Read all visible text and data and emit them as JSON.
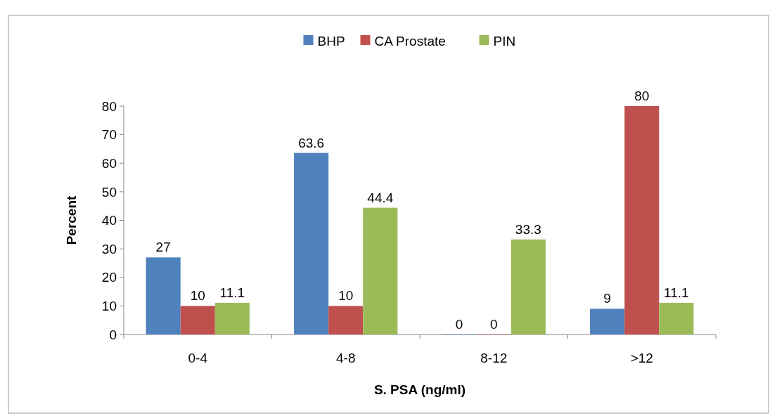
{
  "chart_data": {
    "type": "bar",
    "xlabel": "S. PSA (ng/ml)",
    "ylabel": "Percent",
    "categories": [
      "0-4",
      "4-8",
      "8-12",
      ">12"
    ],
    "series": [
      {
        "name": "BHP",
        "color": "#4f81bd",
        "values": [
          27,
          63.6,
          0,
          9
        ]
      },
      {
        "name": "CA Prostate",
        "color": "#c0504d",
        "values": [
          10,
          10,
          0,
          80
        ]
      },
      {
        "name": "PIN",
        "color": "#9bbb59",
        "values": [
          11.1,
          44.4,
          33.3,
          11.1
        ]
      }
    ],
    "ylim": [
      0,
      80
    ],
    "yticks": [
      0,
      10,
      20,
      30,
      40,
      50,
      60,
      70,
      80
    ],
    "grid": false,
    "legend": "top",
    "data_labels": true
  }
}
